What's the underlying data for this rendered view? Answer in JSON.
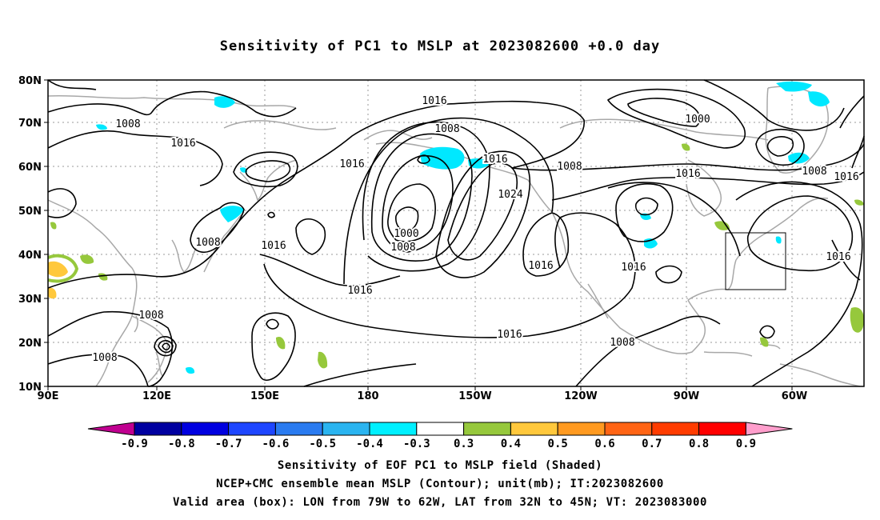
{
  "title": "Sensitivity of PC1 to MSLP at 2023082600 +0.0 day",
  "lat_labels": [
    "80N",
    "70N",
    "60N",
    "50N",
    "40N",
    "30N",
    "20N",
    "10N"
  ],
  "lon_labels": [
    "90E",
    "120E",
    "150E",
    "180",
    "150W",
    "120W",
    "90W",
    "60W"
  ],
  "contour_labels": [
    "1016",
    "1008",
    "1000",
    "1016",
    "1008",
    "1016",
    "1016",
    "1008",
    "1016",
    "1016",
    "1016",
    "1024",
    "1008",
    "1000",
    "1008",
    "1016",
    "1008",
    "1016",
    "1016",
    "1016",
    "1008",
    "1016",
    "1008",
    "1008"
  ],
  "colorbar": {
    "labels": [
      "-0.9",
      "-0.8",
      "-0.7",
      "-0.6",
      "-0.5",
      "-0.4",
      "-0.3",
      "0.3",
      "0.4",
      "0.5",
      "0.6",
      "0.7",
      "0.8",
      "0.9"
    ],
    "colors": [
      "#0000a0",
      "#0000e0",
      "#1e46ff",
      "#2a7bf0",
      "#2ab4f0",
      "#00f0ff",
      "#ffffff",
      "#96c83c",
      "#ffc83c",
      "#ff9a20",
      "#ff6414",
      "#ff3c00",
      "#ff0000"
    ],
    "left_arrow_color": "#c00090",
    "right_arrow_color": "#ff9ecc"
  },
  "captions": [
    "Sensitivity of EOF PC1 to MSLP field (Shaded)",
    "NCEP+CMC ensemble mean MSLP (Contour); unit(mb); IT:2023082600",
    "Valid area (box): LON from 79W to 62W, LAT from 32N to 45N; VT: 2023083000"
  ],
  "colors": {
    "contour": "#000000",
    "coast": "#a8a8a8",
    "grid": "#999999",
    "neg_shade": "#00e8ff",
    "pos_green": "#96c83c",
    "pos_yellow": "#ffc83c"
  }
}
